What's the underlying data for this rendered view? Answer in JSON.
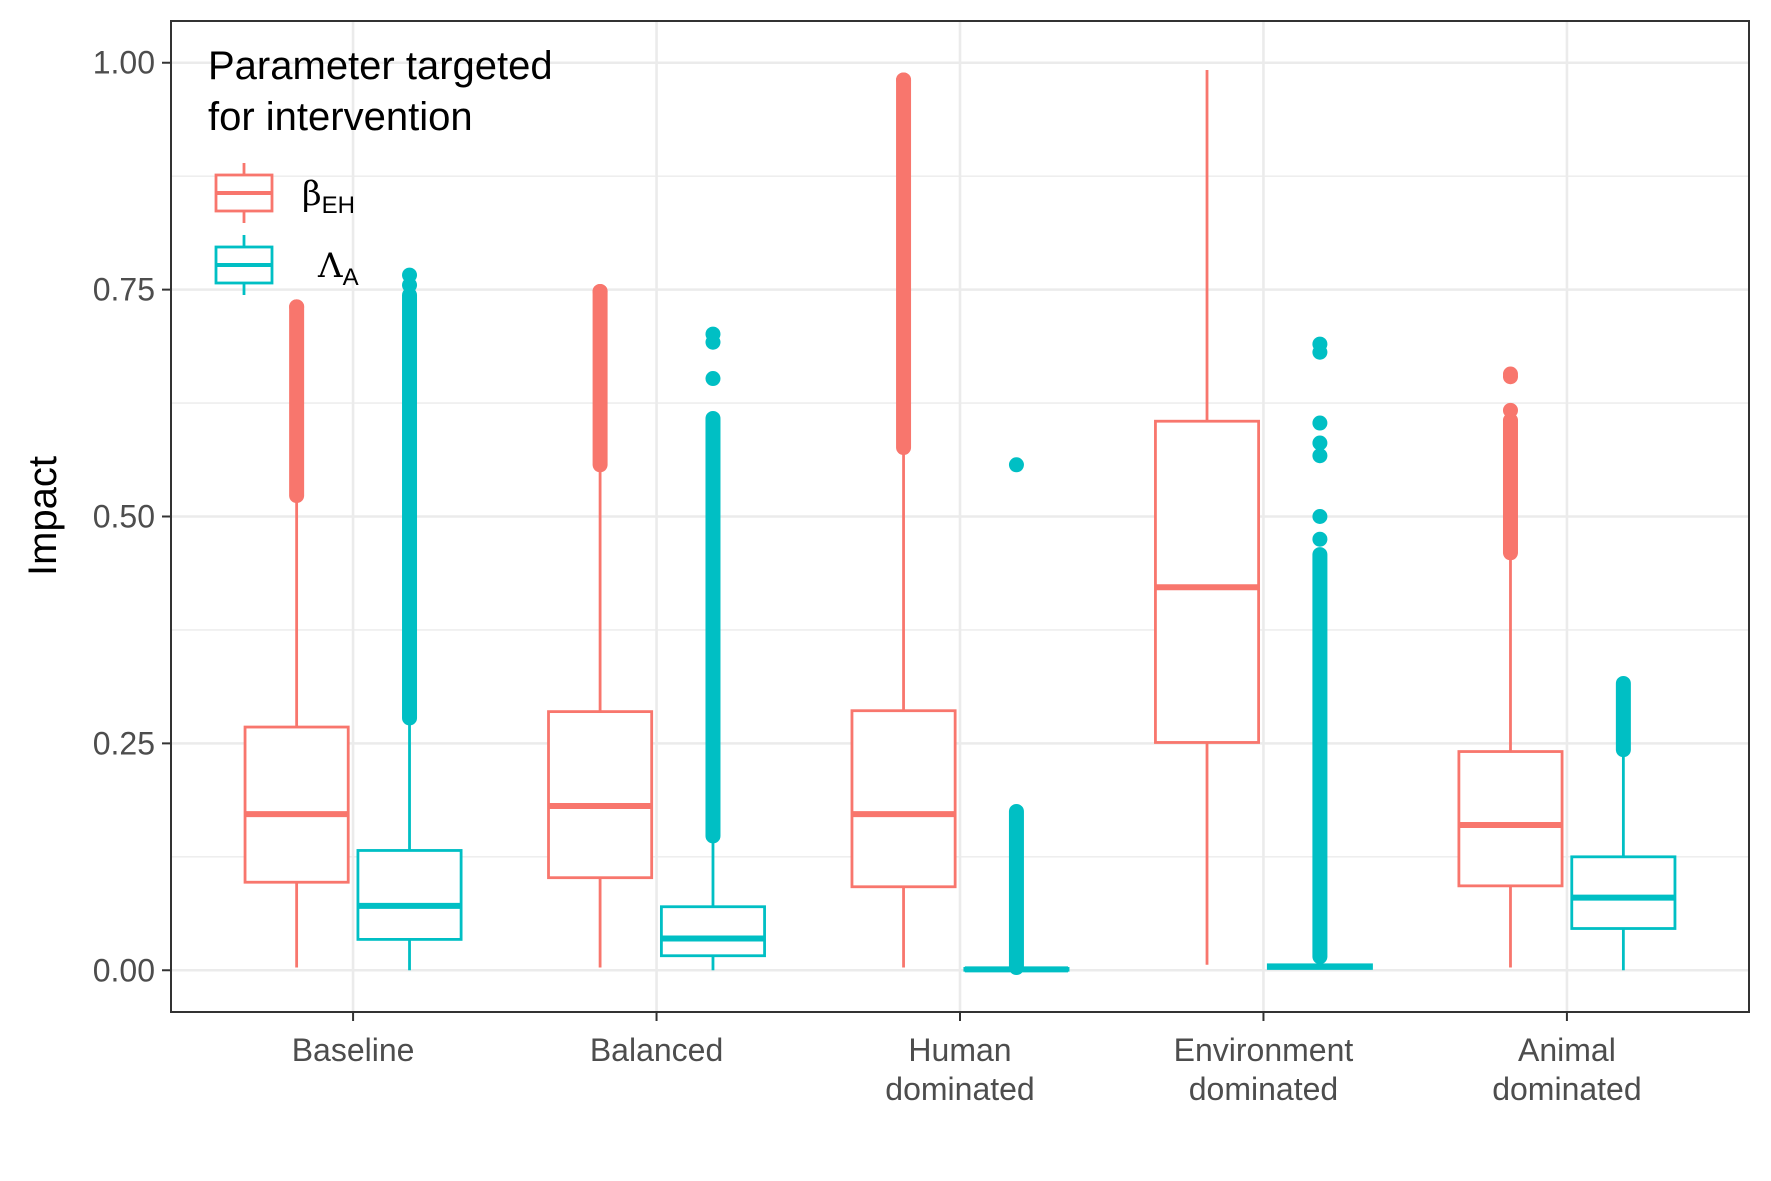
{
  "chart_data": {
    "type": "boxplot",
    "ylabel": "Impact",
    "xlabel": "",
    "ylim": [
      -0.046,
      1.046
    ],
    "yticks": [
      {
        "value": 0.0,
        "label": "0.00"
      },
      {
        "value": 0.25,
        "label": "0.25"
      },
      {
        "value": 0.5,
        "label": "0.50"
      },
      {
        "value": 0.75,
        "label": "0.75"
      },
      {
        "value": 1.0,
        "label": "1.00"
      }
    ],
    "categories": [
      {
        "lines": [
          "Baseline"
        ]
      },
      {
        "lines": [
          "Balanced"
        ]
      },
      {
        "lines": [
          "Human",
          "dominated"
        ]
      },
      {
        "lines": [
          "Environment",
          "dominated"
        ]
      },
      {
        "lines": [
          "Animal",
          "dominated"
        ]
      }
    ],
    "grid": true,
    "legend": {
      "title_lines": [
        "Parameter targeted",
        "for intervention"
      ],
      "position": "top-left",
      "items": [
        {
          "symbol": "β",
          "sub": "EH",
          "color": "#F8766D"
        },
        {
          "symbol": "Λ",
          "sub": "A",
          "color": "#00BFC4"
        }
      ]
    },
    "series": [
      {
        "name": "βEH",
        "color": "#F8766D",
        "boxes": [
          {
            "q1": 0.097,
            "median": 0.172,
            "q3": 0.268,
            "whisker_low": 0.003,
            "whisker_high": 0.523,
            "outliers_range": [
              0.523,
              0.731
            ],
            "outlier_points": [
              0.731
            ]
          },
          {
            "q1": 0.102,
            "median": 0.181,
            "q3": 0.285,
            "whisker_low": 0.003,
            "whisker_high": 0.557,
            "outliers_range": [
              0.557,
              0.748
            ],
            "outlier_points": [
              0.748
            ]
          },
          {
            "q1": 0.092,
            "median": 0.172,
            "q3": 0.286,
            "whisker_low": 0.003,
            "whisker_high": 0.576,
            "outliers_range": [
              0.576,
              0.981
            ],
            "outlier_points": [
              0.981
            ]
          },
          {
            "q1": 0.251,
            "median": 0.422,
            "q3": 0.605,
            "whisker_low": 0.006,
            "whisker_high": 0.992,
            "outliers_range": null,
            "outlier_points": []
          },
          {
            "q1": 0.093,
            "median": 0.16,
            "q3": 0.241,
            "whisker_low": 0.003,
            "whisker_high": 0.46,
            "outliers_range": [
              0.46,
              0.606
            ],
            "outlier_points": [
              0.617,
              0.654,
              0.657
            ]
          }
        ]
      },
      {
        "name": "ΛA",
        "color": "#00BFC4",
        "boxes": [
          {
            "q1": 0.034,
            "median": 0.071,
            "q3": 0.132,
            "whisker_low": 0.0,
            "whisker_high": 0.278,
            "outliers_range": [
              0.278,
              0.744
            ],
            "outlier_points": [
              0.755,
              0.766
            ]
          },
          {
            "q1": 0.016,
            "median": 0.035,
            "q3": 0.07,
            "whisker_low": 0.0,
            "whisker_high": 0.148,
            "outliers_range": [
              0.148,
              0.608
            ],
            "outlier_points": [
              0.652,
              0.692,
              0.701
            ]
          },
          {
            "q1": 0.0,
            "median": 0.001,
            "q3": 0.002,
            "whisker_low": 0.0,
            "whisker_high": 0.003,
            "outliers_range": [
              0.003,
              0.175
            ],
            "outlier_points": [
              0.557
            ]
          },
          {
            "q1": 0.002,
            "median": 0.004,
            "q3": 0.006,
            "whisker_low": 0.002,
            "whisker_high": 0.009,
            "outliers_range": [
              0.015,
              0.458
            ],
            "outlier_points": [
              0.475,
              0.5,
              0.567,
              0.581,
              0.603,
              0.681,
              0.69
            ]
          },
          {
            "q1": 0.046,
            "median": 0.08,
            "q3": 0.125,
            "whisker_low": 0.0,
            "whisker_high": 0.243,
            "outliers_range": [
              0.243,
              0.316
            ],
            "outlier_points": []
          }
        ]
      }
    ]
  }
}
